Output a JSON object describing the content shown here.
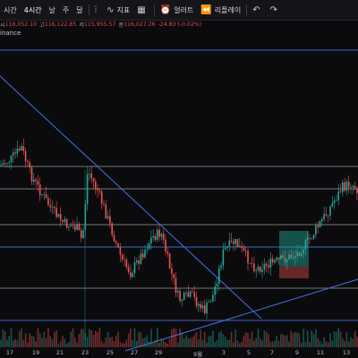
{
  "toolbar": {
    "items": [
      {
        "label": "시간",
        "active": false
      },
      {
        "label": "4시간",
        "active": true
      },
      {
        "label": "날",
        "active": false
      },
      {
        "label": "주",
        "active": false
      },
      {
        "label": "달",
        "active": false
      }
    ],
    "indicators_label": "지표",
    "alert_label": "얼러트",
    "replay_label": "리플레이"
  },
  "ohlc": {
    "open_k": "시",
    "open": "116,052.10",
    "high_k": "고",
    "high": "116,122.85",
    "low_k": "저",
    "low": "115,955.57",
    "close_k": "종",
    "close": "116,027.26",
    "change": "-24.83 (-0.02%)"
  },
  "source": "inance",
  "x_axis": {
    "ticks": [
      "17",
      "19",
      "21",
      "23",
      "25",
      "27",
      "29",
      "9월",
      "3",
      "5",
      "7",
      "9",
      "11",
      "13"
    ]
  },
  "colors": {
    "up": "#26a69a",
    "down": "#ef5350",
    "line": "#3f6ad8",
    "level": "#c9ccd4"
  },
  "chart_data": {
    "type": "candlestick",
    "x_ticks": [
      "17",
      "19",
      "21",
      "23",
      "25",
      "27",
      "29",
      "9월",
      "3",
      "5",
      "7",
      "9",
      "11",
      "13"
    ]
  }
}
